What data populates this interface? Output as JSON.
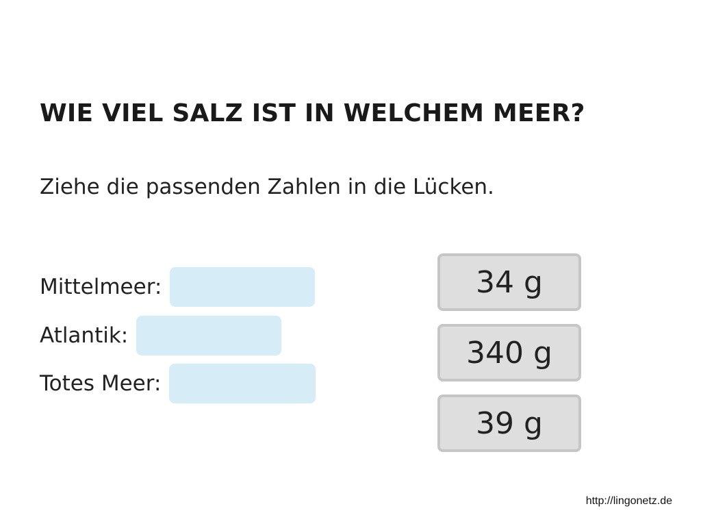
{
  "title": "WIE VIEL SALZ IST IN WELCHEM MEER?",
  "instruction": "Ziehe die passenden Zahlen in die Lücken.",
  "rows": [
    {
      "label": "Mittelmeer:"
    },
    {
      "label": "Atlantik:"
    },
    {
      "label": "Totes Meer:"
    }
  ],
  "tokens": [
    {
      "label": "34 g"
    },
    {
      "label": "340 g"
    },
    {
      "label": "39 g"
    }
  ],
  "footer": {
    "link": "http://lingonetz.de"
  },
  "colors": {
    "drop_slot": "#d6ecf6",
    "token_fill": "#dedede",
    "token_border": "#c6c6c6"
  }
}
